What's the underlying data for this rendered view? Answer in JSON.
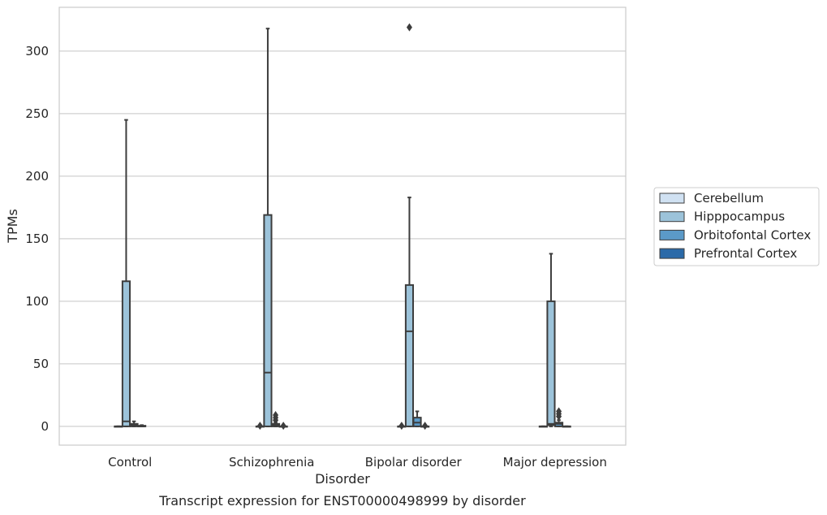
{
  "chart_data": {
    "type": "box",
    "xlabel": "Disorder",
    "ylabel": "TPMs",
    "caption": "Transcript expression for ENST00000498999 by disorder",
    "ylim": [
      -15,
      335
    ],
    "yticks": [
      0,
      50,
      100,
      150,
      200,
      250,
      300
    ],
    "grid": true,
    "legend_position": "right",
    "categories": [
      "Control",
      "Schizophrenia",
      "Bipolar disorder",
      "Major depression"
    ],
    "series": [
      {
        "name": "Cerebellum",
        "color": "#d0e1f2",
        "boxes": [
          {
            "whislo": 0,
            "q1": 0,
            "med": 0,
            "q3": 0,
            "whishi": 0,
            "fliers": []
          },
          {
            "whislo": 0,
            "q1": 0,
            "med": 0,
            "q3": 0,
            "whishi": 0,
            "fliers": [
              0.5
            ]
          },
          {
            "whislo": 0,
            "q1": 0,
            "med": 0,
            "q3": 0,
            "whishi": 0,
            "fliers": [
              0.5
            ]
          },
          {
            "whislo": 0,
            "q1": 0,
            "med": 0,
            "q3": 0,
            "whishi": 0,
            "fliers": []
          }
        ]
      },
      {
        "name": "Hipppocampus",
        "color": "#9cc3da",
        "boxes": [
          {
            "whislo": 0,
            "q1": 0,
            "med": 4,
            "q3": 116,
            "whishi": 245,
            "fliers": []
          },
          {
            "whislo": 0,
            "q1": 0,
            "med": 43,
            "q3": 169,
            "whishi": 318,
            "fliers": []
          },
          {
            "whislo": 0,
            "q1": 0,
            "med": 76,
            "q3": 113,
            "whishi": 183,
            "fliers": [
              319
            ]
          },
          {
            "whislo": 0,
            "q1": 1,
            "med": 2,
            "q3": 100,
            "whishi": 138,
            "fliers": []
          }
        ]
      },
      {
        "name": "Orbitofontal Cortex",
        "color": "#5b9ac8",
        "boxes": [
          {
            "whislo": 0,
            "q1": 0,
            "med": 1,
            "q3": 2,
            "whishi": 4,
            "fliers": []
          },
          {
            "whislo": 0,
            "q1": 0,
            "med": 1,
            "q3": 2,
            "whishi": 3,
            "fliers": [
              5,
              7,
              9
            ]
          },
          {
            "whislo": 0,
            "q1": 0,
            "med": 3,
            "q3": 7,
            "whishi": 12,
            "fliers": []
          },
          {
            "whislo": 0,
            "q1": 0,
            "med": 2,
            "q3": 3,
            "whishi": 5,
            "fliers": [
              8,
              10,
              12
            ]
          }
        ]
      },
      {
        "name": "Prefrontal Cortex",
        "color": "#2b6aa8",
        "boxes": [
          {
            "whislo": 0,
            "q1": 0,
            "med": 0,
            "q3": 0.5,
            "whishi": 1,
            "fliers": []
          },
          {
            "whislo": 0,
            "q1": 0,
            "med": 0,
            "q3": 0,
            "whishi": 0,
            "fliers": [
              0.5
            ]
          },
          {
            "whislo": 0,
            "q1": 0,
            "med": 0,
            "q3": 0,
            "whishi": 0,
            "fliers": [
              0.5
            ]
          },
          {
            "whislo": 0,
            "q1": 0,
            "med": 0,
            "q3": 0,
            "whishi": 0,
            "fliers": []
          }
        ]
      }
    ]
  }
}
